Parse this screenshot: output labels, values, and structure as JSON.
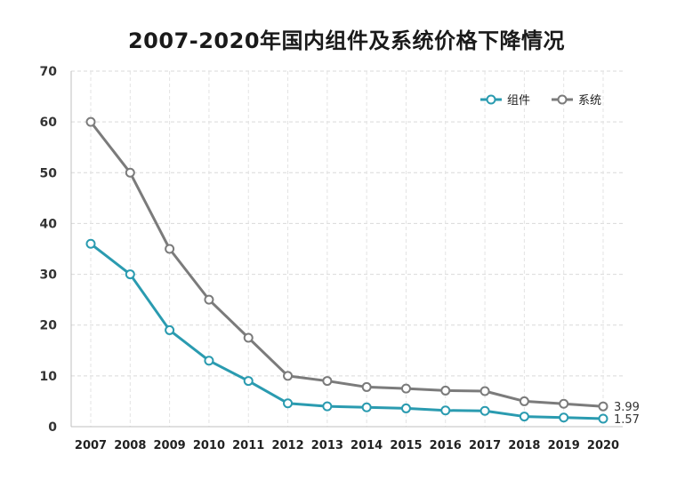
{
  "chart_data": {
    "type": "line",
    "title": "2007-2020年国内组件及系统价格下降情况",
    "xlabel": "",
    "ylabel": "",
    "categories": [
      "2007",
      "2008",
      "2009",
      "2010",
      "2011",
      "2012",
      "2013",
      "2014",
      "2015",
      "2016",
      "2017",
      "2018",
      "2019",
      "2020"
    ],
    "ylim": [
      0,
      70
    ],
    "yticks": [
      "0",
      "10",
      "20",
      "30",
      "40",
      "50",
      "60",
      "70"
    ],
    "grid": true,
    "legend_position": "top-right",
    "series": [
      {
        "name": "组件",
        "color": "#2a9bb0",
        "values": [
          36,
          30,
          19,
          13,
          9,
          4.6,
          4,
          3.8,
          3.6,
          3.2,
          3.1,
          2,
          1.8,
          1.57
        ]
      },
      {
        "name": "系统",
        "color": "#7b7b7b",
        "values": [
          60,
          50,
          35,
          25,
          17.5,
          10,
          9,
          7.8,
          7.5,
          7.1,
          7,
          5,
          4.5,
          3.99
        ]
      }
    ],
    "annotations": [
      {
        "series": "系统",
        "text": "3.99"
      },
      {
        "series": "组件",
        "text": "1.57"
      }
    ]
  }
}
